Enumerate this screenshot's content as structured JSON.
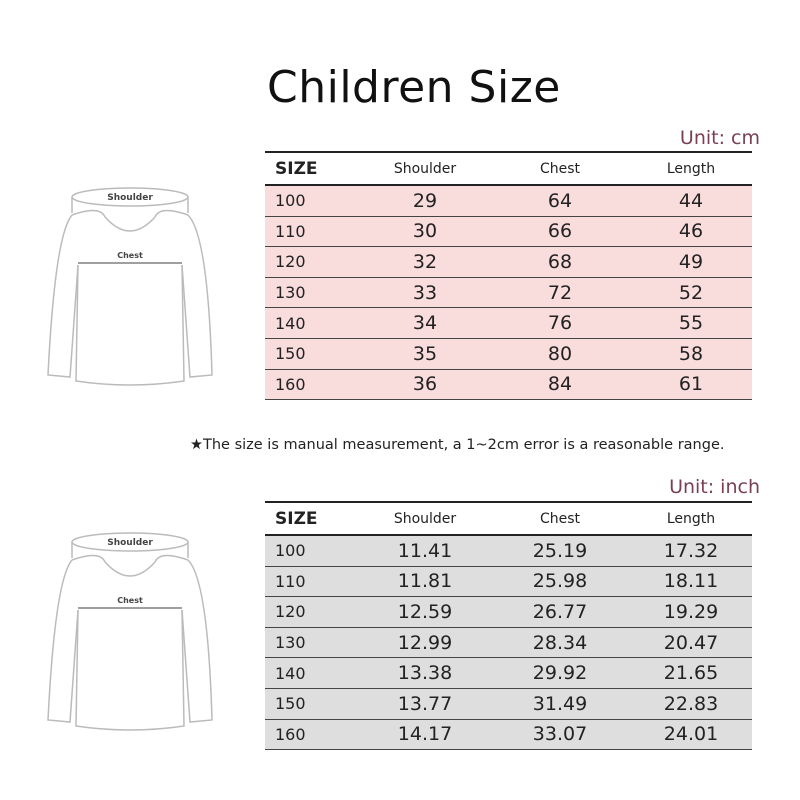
{
  "title": "Children Size",
  "note": "★The size is manual measurement, a 1~2cm error is a reasonable range.",
  "diagram": {
    "shoulder_label": "Shoulder",
    "chest_label": "Chest"
  },
  "table_cm": {
    "unit": "Unit: cm",
    "headers": [
      "SIZE",
      "Shoulder",
      "Chest",
      "Length"
    ],
    "rows": [
      [
        "100",
        "29",
        "64",
        "44"
      ],
      [
        "110",
        "30",
        "66",
        "46"
      ],
      [
        "120",
        "32",
        "68",
        "49"
      ],
      [
        "130",
        "33",
        "72",
        "52"
      ],
      [
        "140",
        "34",
        "76",
        "55"
      ],
      [
        "150",
        "35",
        "80",
        "58"
      ],
      [
        "160",
        "36",
        "84",
        "61"
      ]
    ],
    "row_color": "#f9dcdc"
  },
  "table_inch": {
    "unit": "Unit: inch",
    "headers": [
      "SIZE",
      "Shoulder",
      "Chest",
      "Length"
    ],
    "rows": [
      [
        "100",
        "11.41",
        "25.19",
        "17.32"
      ],
      [
        "110",
        "11.81",
        "25.98",
        "18.11"
      ],
      [
        "120",
        "12.59",
        "26.77",
        "19.29"
      ],
      [
        "130",
        "12.99",
        "28.34",
        "20.47"
      ],
      [
        "140",
        "13.38",
        "29.92",
        "21.65"
      ],
      [
        "150",
        "13.77",
        "31.49",
        "22.83"
      ],
      [
        "160",
        "14.17",
        "33.07",
        "24.01"
      ]
    ],
    "row_color": "#dedede"
  }
}
